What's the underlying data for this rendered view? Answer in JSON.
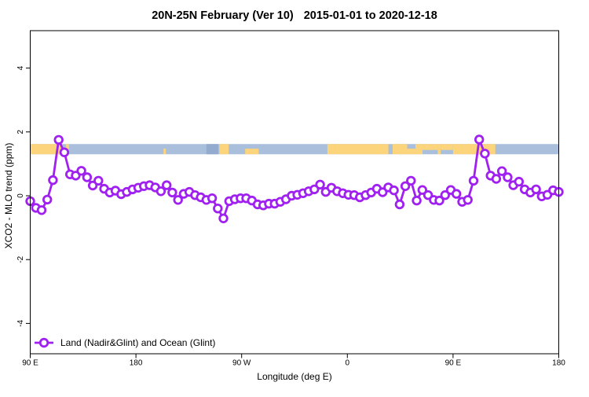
{
  "title": {
    "left": "20N-25N February (Ver 10)",
    "right": "2015-01-01 to 2020-12-18"
  },
  "chart_data": {
    "type": "line",
    "title": "20N-25N February (Ver 10)  2015-01-01 to 2020-12-18",
    "xlabel": "Longitude (deg E)",
    "ylabel": "XCO2 - MLO trend (ppm)",
    "grid": false,
    "legend_position": "bottom-left",
    "x_axis": {
      "start_deg": 90,
      "end_deg": 540,
      "wraps_globe": true,
      "ticks": [
        {
          "deg": 90,
          "label": "90 E"
        },
        {
          "deg": 180,
          "label": "180"
        },
        {
          "deg": 270,
          "label": "90 W"
        },
        {
          "deg": 360,
          "label": "0"
        },
        {
          "deg": 450,
          "label": "90 E"
        },
        {
          "deg": 540,
          "label": "180"
        }
      ]
    },
    "y_axis": {
      "min": -5.0,
      "max": 5.2,
      "ticks": [
        {
          "value": -4,
          "label": "-4"
        },
        {
          "value": -2,
          "label": "-2"
        },
        {
          "value": 0,
          "label": "0"
        },
        {
          "value": 2,
          "label": "2"
        },
        {
          "value": 4,
          "label": "4"
        }
      ]
    },
    "series": [
      {
        "name": "Land (Nadir&Glint) and Ocean (Glint)",
        "color": "#A020F0",
        "marker": "open-circle",
        "x_start_deg": 90,
        "x_end_deg": 540,
        "values": [
          -0.17,
          -0.38,
          -0.45,
          -0.12,
          0.49,
          1.75,
          1.36,
          0.67,
          0.63,
          0.78,
          0.58,
          0.32,
          0.47,
          0.22,
          0.1,
          0.16,
          0.05,
          0.12,
          0.2,
          0.25,
          0.3,
          0.33,
          0.26,
          0.14,
          0.33,
          0.1,
          -0.13,
          0.06,
          0.12,
          0.02,
          -0.05,
          -0.13,
          -0.08,
          -0.4,
          -0.71,
          -0.17,
          -0.11,
          -0.08,
          -0.08,
          -0.15,
          -0.27,
          -0.3,
          -0.25,
          -0.25,
          -0.19,
          -0.11,
          0.0,
          0.03,
          0.08,
          0.14,
          0.2,
          0.35,
          0.12,
          0.25,
          0.14,
          0.08,
          0.03,
          0.02,
          -0.05,
          0.02,
          0.1,
          0.22,
          0.11,
          0.26,
          0.17,
          -0.27,
          0.3,
          0.47,
          -0.15,
          0.18,
          0.02,
          -0.13,
          -0.15,
          0.02,
          0.18,
          0.06,
          -0.19,
          -0.13,
          0.47,
          1.76,
          1.32,
          0.63,
          0.53,
          0.77,
          0.58,
          0.33,
          0.44,
          0.2,
          0.1,
          0.2,
          -0.02,
          0.03,
          0.17,
          0.12
        ]
      }
    ],
    "land_ocean_band": {
      "y_top_ppm": 1.62,
      "y_bottom_ppm": 1.3,
      "ocean_color": "#A9BFDB",
      "land_color": "#FBD47C",
      "shade_color": "#92ABCE",
      "segments": [
        {
          "from": 90,
          "to": 116,
          "part": "full"
        },
        {
          "from": 120.5,
          "to": 123,
          "part": "full"
        },
        {
          "from": 203.5,
          "to": 205.5,
          "part": "bottom"
        },
        {
          "from": 240,
          "to": 250,
          "part": "full",
          "color": "#92ABCE"
        },
        {
          "from": 251,
          "to": 259,
          "part": "full"
        },
        {
          "from": 273,
          "to": 284.5,
          "part": "bottom"
        },
        {
          "from": 343,
          "to": 395,
          "part": "full"
        },
        {
          "from": 398.5,
          "to": 411,
          "part": "full"
        },
        {
          "from": 411,
          "to": 418,
          "part": "bottom"
        },
        {
          "from": 418,
          "to": 424,
          "part": "full"
        },
        {
          "from": 424,
          "to": 437,
          "part": "top"
        },
        {
          "from": 437,
          "to": 439.5,
          "part": "full"
        },
        {
          "from": 439.5,
          "to": 450,
          "part": "top"
        },
        {
          "from": 450,
          "to": 486,
          "part": "full"
        }
      ]
    }
  },
  "legend": {
    "label": "Land (Nadir&Glint) and Ocean (Glint)"
  }
}
